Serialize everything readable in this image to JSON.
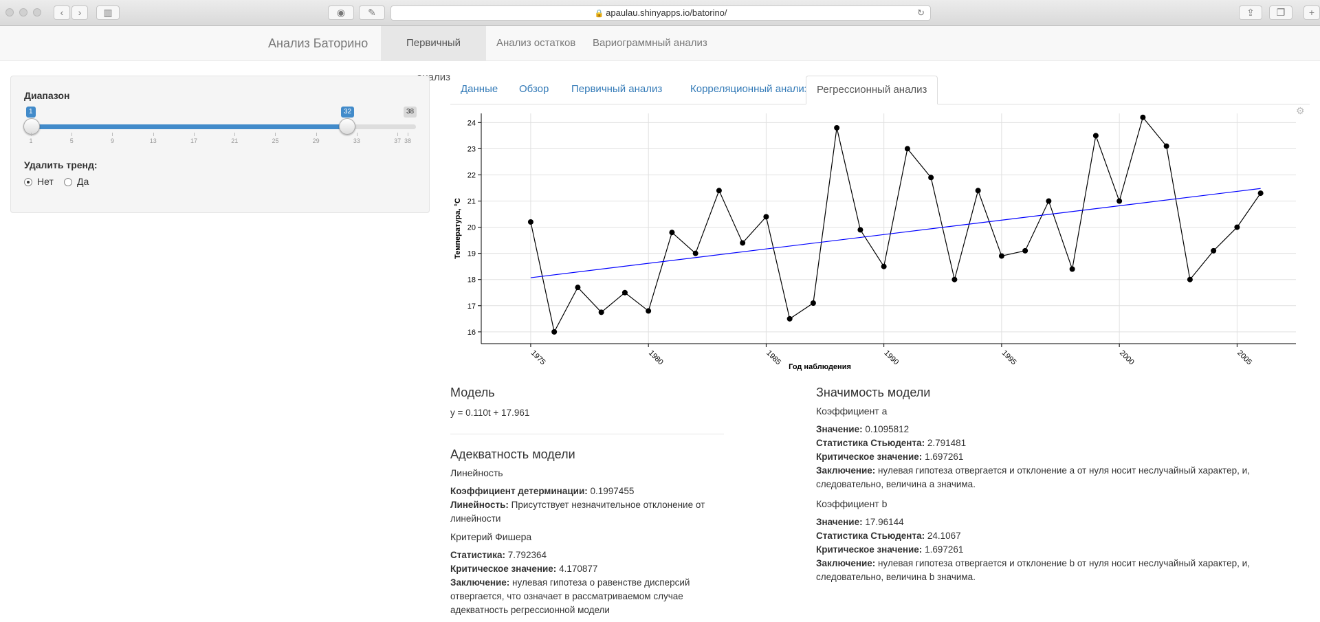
{
  "browser": {
    "url": "apaulau.shinyapps.io/batorino/"
  },
  "navbar": {
    "brand": "Анализ Баторино",
    "items": [
      {
        "label": "Первичный анализ",
        "active": true
      },
      {
        "label": "Анализ остатков",
        "active": false
      },
      {
        "label": "Вариограммный анализ",
        "active": false
      }
    ]
  },
  "sidebar": {
    "range_label": "Диапазон",
    "range_from": "1",
    "range_to": "32",
    "range_max": "38",
    "ticks": [
      "1",
      "5",
      "9",
      "13",
      "17",
      "21",
      "25",
      "29",
      "33",
      "37",
      "38"
    ],
    "trend_label": "Удалить тренд:",
    "options": [
      {
        "label": "Нет",
        "selected": true
      },
      {
        "label": "Да",
        "selected": false
      }
    ]
  },
  "tabs": [
    {
      "label": "Данные",
      "active": false
    },
    {
      "label": "Обзор",
      "active": false
    },
    {
      "label": "Первичный анализ",
      "active": false
    },
    {
      "label": "Корреляционный анализ",
      "active": false
    },
    {
      "label": "Регрессионный анализ",
      "active": true
    }
  ],
  "chart_data": {
    "type": "line",
    "xlabel": "Год наблюдения",
    "ylabel": "Температура, °C",
    "xlim": [
      1972.9,
      2007.5
    ],
    "ylim": [
      15.55,
      24.35
    ],
    "xticks": [
      1975,
      1980,
      1985,
      1990,
      1995,
      2000,
      2005
    ],
    "yticks": [
      16,
      17,
      18,
      19,
      20,
      21,
      22,
      23,
      24
    ],
    "grid": true,
    "series": [
      {
        "x": [
          1975,
          1976,
          1977,
          1978,
          1979,
          1980,
          1981,
          1982,
          1983,
          1984,
          1985,
          1986,
          1987,
          1988,
          1989,
          1990,
          1991,
          1992,
          1993,
          1994,
          1995,
          1996,
          1997,
          1998,
          1999,
          2000,
          2001,
          2002,
          2003,
          2004,
          2005,
          2006
        ],
        "values": [
          20.2,
          16.0,
          17.7,
          16.75,
          17.5,
          16.8,
          19.8,
          19.0,
          21.4,
          19.4,
          20.4,
          16.5,
          17.1,
          23.8,
          19.9,
          18.5,
          23.0,
          21.9,
          18.0,
          21.4,
          18.9,
          19.1,
          21.0,
          18.4,
          23.5,
          21.0,
          24.2,
          23.1,
          18.0,
          19.1,
          20.0,
          21.3
        ],
        "color": "#000000"
      },
      {
        "x": [
          1975,
          2006
        ],
        "values": [
          18.07,
          21.48
        ],
        "color": "#0000ff"
      }
    ]
  },
  "model": {
    "title": "Модель",
    "equation": "y = 0.110t + 17.961"
  },
  "adequacy": {
    "title": "Адекватность модели",
    "linearity_title": "Линейность",
    "det_label": "Коэффициент детерминации:",
    "det_value": "0.1997455",
    "lin_label": "Линейность:",
    "lin_value_1": "Присутствует незначительное отклонение от",
    "lin_value_2": "линейности",
    "fisher_title": "Критерий Фишера",
    "stat_label": "Статистика:",
    "stat_value": "7.792364",
    "crit_label": "Критическое значение:",
    "crit_value": "4.170877",
    "concl_label": "Заключение:",
    "concl_1": "нулевая гипотеза о равенстве дисперсий",
    "concl_2": "отвергается, что означает в рассматриваемом случае",
    "concl_3": "адекватность регрессионной модели"
  },
  "significance": {
    "title": "Значимость модели",
    "coef_a": {
      "title": "Коэффициент a",
      "value_label": "Значение:",
      "value": "0.1095812",
      "t_label": "Статистика Стьюдента:",
      "t_value": "2.791481",
      "crit_label": "Критическое значение:",
      "crit_value": "1.697261",
      "concl_label": "Заключение:",
      "concl_1": "нулевая гипотеза отвергается и отклонение a от нуля носит неслучайный характер, и,",
      "concl_2": "следовательно, величина a значима."
    },
    "coef_b": {
      "title": "Коэффициент b",
      "value_label": "Значение:",
      "value": "17.96144",
      "t_label": "Статистика Стьюдента:",
      "t_value": "24.1067",
      "crit_label": "Критическое значение:",
      "crit_value": "1.697261",
      "concl_label": "Заключение:",
      "concl_1": "нулевая гипотеза отвергается и отклонение b от нуля носит неслучайный характер, и,",
      "concl_2": "следовательно, величина b значима."
    }
  }
}
